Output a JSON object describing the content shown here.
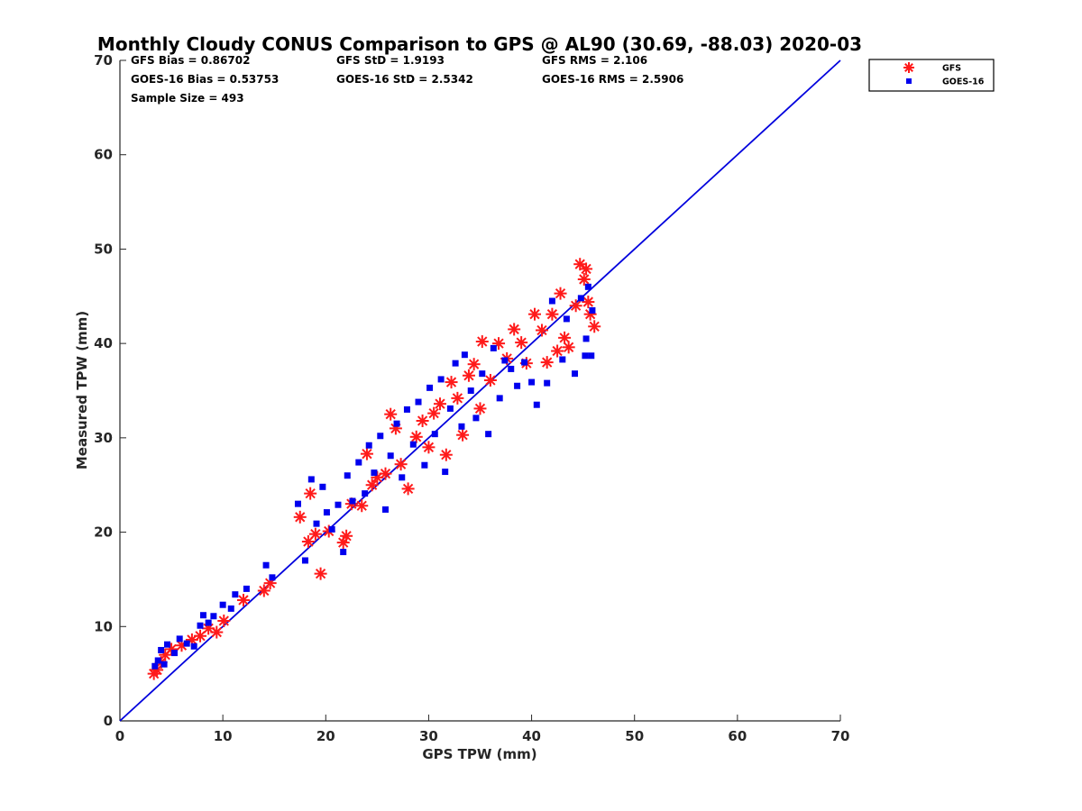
{
  "chart_data": {
    "type": "scatter",
    "title": "Monthly Cloudy CONUS Comparison to GPS @ AL90 (30.69, -88.03) 2020-03",
    "xlabel": "GPS TPW (mm)",
    "ylabel": "Measured TPW (mm)",
    "xlim": [
      0,
      70
    ],
    "ylim": [
      0,
      70
    ],
    "xticks": [
      "0",
      "10",
      "20",
      "30",
      "40",
      "50",
      "60",
      "70"
    ],
    "yticks": [
      "0",
      "10",
      "20",
      "30",
      "40",
      "50",
      "60",
      "70"
    ],
    "grid": false,
    "legend_position": "top-right (outside axes)",
    "stats": [
      [
        "GFS Bias = 0.86702",
        "GFS StD = 1.9193",
        "GFS RMS = 2.106"
      ],
      [
        "GOES-16 Bias = 0.53753",
        "GOES-16 StD = 2.5342",
        "GOES-16 RMS = 2.5906"
      ],
      [
        "Sample Size = 493"
      ]
    ],
    "reference_line": {
      "x": [
        0,
        70
      ],
      "y": [
        0,
        70
      ],
      "color": "#0000dd"
    },
    "series": [
      {
        "name": "GFS",
        "marker": "asterisk",
        "color": "#ff1a1a",
        "points": [
          [
            3.3,
            5.0
          ],
          [
            3.6,
            5.4
          ],
          [
            4.0,
            6.2
          ],
          [
            4.4,
            7.0
          ],
          [
            5.0,
            7.6
          ],
          [
            6.0,
            8.0
          ],
          [
            7.0,
            8.6
          ],
          [
            7.8,
            9.0
          ],
          [
            8.6,
            9.8
          ],
          [
            9.4,
            9.4
          ],
          [
            10.1,
            10.6
          ],
          [
            12.0,
            12.8
          ],
          [
            14.0,
            13.8
          ],
          [
            14.6,
            14.6
          ],
          [
            17.5,
            21.6
          ],
          [
            18.3,
            19.0
          ],
          [
            18.5,
            24.1
          ],
          [
            19.0,
            19.8
          ],
          [
            19.5,
            15.6
          ],
          [
            20.3,
            20.1
          ],
          [
            21.7,
            18.9
          ],
          [
            22.0,
            19.6
          ],
          [
            22.5,
            23.0
          ],
          [
            23.5,
            22.8
          ],
          [
            24.0,
            28.3
          ],
          [
            24.5,
            25.0
          ],
          [
            25.0,
            25.8
          ],
          [
            25.8,
            26.2
          ],
          [
            26.3,
            32.5
          ],
          [
            26.8,
            31.0
          ],
          [
            27.3,
            27.2
          ],
          [
            28.0,
            24.6
          ],
          [
            28.8,
            30.1
          ],
          [
            29.4,
            31.8
          ],
          [
            30.0,
            29.0
          ],
          [
            30.5,
            32.6
          ],
          [
            31.1,
            33.6
          ],
          [
            31.7,
            28.2
          ],
          [
            32.2,
            35.9
          ],
          [
            32.8,
            34.2
          ],
          [
            33.3,
            30.3
          ],
          [
            33.9,
            36.6
          ],
          [
            34.4,
            37.8
          ],
          [
            35.0,
            33.1
          ],
          [
            35.2,
            40.2
          ],
          [
            36.0,
            36.1
          ],
          [
            36.8,
            40.0
          ],
          [
            37.6,
            38.4
          ],
          [
            38.3,
            41.5
          ],
          [
            39.0,
            40.1
          ],
          [
            39.5,
            37.9
          ],
          [
            40.3,
            43.1
          ],
          [
            41.0,
            41.4
          ],
          [
            41.5,
            38.0
          ],
          [
            42.0,
            43.1
          ],
          [
            42.5,
            39.2
          ],
          [
            42.8,
            45.3
          ],
          [
            43.2,
            40.6
          ],
          [
            43.6,
            39.6
          ],
          [
            44.3,
            44.0
          ],
          [
            44.7,
            48.4
          ],
          [
            45.1,
            46.8
          ],
          [
            45.3,
            47.9
          ],
          [
            45.5,
            44.4
          ],
          [
            45.7,
            43.1
          ],
          [
            46.1,
            41.8
          ]
        ]
      },
      {
        "name": "GOES-16",
        "marker": "square",
        "color": "#0000ee",
        "points": [
          [
            3.4,
            5.8
          ],
          [
            3.7,
            6.4
          ],
          [
            4.0,
            7.5
          ],
          [
            4.3,
            6.0
          ],
          [
            4.6,
            8.1
          ],
          [
            5.3,
            7.2
          ],
          [
            5.8,
            8.7
          ],
          [
            6.5,
            8.2
          ],
          [
            7.2,
            7.9
          ],
          [
            7.8,
            10.1
          ],
          [
            8.1,
            11.2
          ],
          [
            8.6,
            10.4
          ],
          [
            9.1,
            11.1
          ],
          [
            10.0,
            12.3
          ],
          [
            10.8,
            11.9
          ],
          [
            11.2,
            13.4
          ],
          [
            12.3,
            14.0
          ],
          [
            14.2,
            16.5
          ],
          [
            14.8,
            15.2
          ],
          [
            17.3,
            23.0
          ],
          [
            18.0,
            17.0
          ],
          [
            18.6,
            25.6
          ],
          [
            19.1,
            20.9
          ],
          [
            19.7,
            24.8
          ],
          [
            20.1,
            22.1
          ],
          [
            20.6,
            20.3
          ],
          [
            21.2,
            22.9
          ],
          [
            21.7,
            17.9
          ],
          [
            22.1,
            26.0
          ],
          [
            22.6,
            23.3
          ],
          [
            23.2,
            27.4
          ],
          [
            23.8,
            24.1
          ],
          [
            24.2,
            29.2
          ],
          [
            24.7,
            26.3
          ],
          [
            25.3,
            30.2
          ],
          [
            25.8,
            22.4
          ],
          [
            26.3,
            28.1
          ],
          [
            26.9,
            31.5
          ],
          [
            27.4,
            25.8
          ],
          [
            27.9,
            33.0
          ],
          [
            28.5,
            29.3
          ],
          [
            29.0,
            33.8
          ],
          [
            29.6,
            27.1
          ],
          [
            30.1,
            35.3
          ],
          [
            30.6,
            30.4
          ],
          [
            31.2,
            36.2
          ],
          [
            31.6,
            26.4
          ],
          [
            32.1,
            33.1
          ],
          [
            32.6,
            37.9
          ],
          [
            33.2,
            31.2
          ],
          [
            33.5,
            38.8
          ],
          [
            34.1,
            35.0
          ],
          [
            34.6,
            32.1
          ],
          [
            35.2,
            36.8
          ],
          [
            35.8,
            30.4
          ],
          [
            36.3,
            39.5
          ],
          [
            36.9,
            34.2
          ],
          [
            37.4,
            38.2
          ],
          [
            38.0,
            37.3
          ],
          [
            38.6,
            35.5
          ],
          [
            39.3,
            38.0
          ],
          [
            40.0,
            35.9
          ],
          [
            40.5,
            33.5
          ],
          [
            41.5,
            35.8
          ],
          [
            42.0,
            44.5
          ],
          [
            43.0,
            38.3
          ],
          [
            43.4,
            42.6
          ],
          [
            44.2,
            36.8
          ],
          [
            44.8,
            44.8
          ],
          [
            45.2,
            38.7
          ],
          [
            45.5,
            46.0
          ],
          [
            45.9,
            43.5
          ],
          [
            45.3,
            40.5
          ],
          [
            45.8,
            38.7
          ]
        ]
      }
    ]
  }
}
